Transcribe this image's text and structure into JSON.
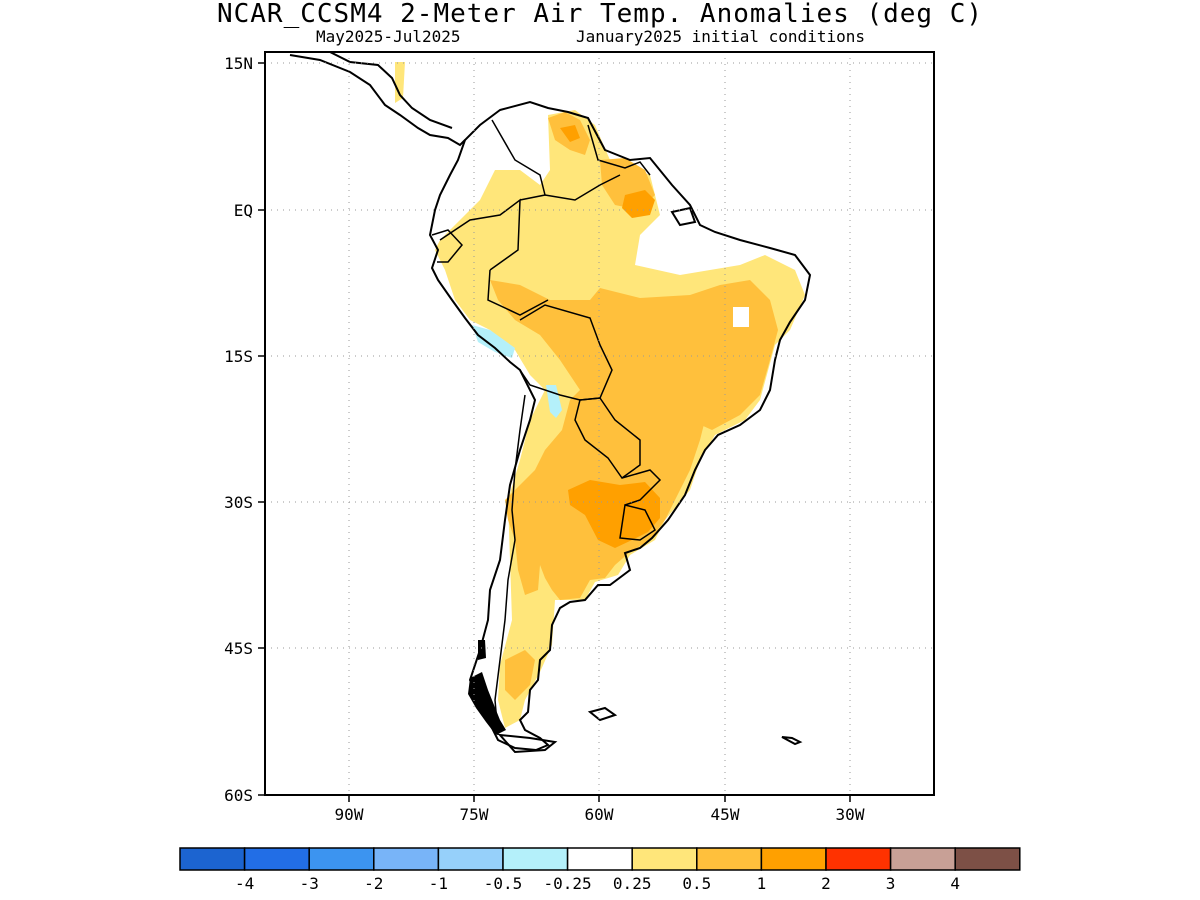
{
  "title": "NCAR_CCSM4 2-Meter Air Temp. Anomalies (deg C)",
  "subtitle_left": "May2025-Jul2025",
  "subtitle_right": "January2025 initial conditions",
  "map": {
    "lat_labels": [
      "15N",
      "EQ",
      "15S",
      "30S",
      "45S",
      "60S"
    ],
    "lon_labels": [
      "90W",
      "75W",
      "60W",
      "45W",
      "30W"
    ],
    "lat_values": [
      15,
      0,
      -15,
      -30,
      -45,
      -60
    ],
    "lon_values": [
      -90,
      -75,
      -60,
      -45,
      -30
    ],
    "lon_range": [
      -100,
      -20
    ],
    "lat_range": [
      -60,
      16
    ],
    "grid": "dotted",
    "anomaly_regions": [
      {
        "region": "central-brazil",
        "category": "0.5-1"
      },
      {
        "region": "amazon-north",
        "category": "0.25-0.5"
      },
      {
        "region": "uruguay-southern-brazil",
        "category": "1-2"
      },
      {
        "region": "guianas",
        "category": "1-2"
      },
      {
        "region": "argentina-central",
        "category": "0.5-1"
      },
      {
        "region": "patagonia",
        "category": "0.25-0.5"
      },
      {
        "region": "altiplano",
        "category": "-0.5--0.25"
      }
    ]
  },
  "colorbar": {
    "colors": [
      "#1c64d0",
      "#226ee6",
      "#3c94f0",
      "#78b4f8",
      "#96d0fa",
      "#b4f0fa",
      "#ffffff",
      "#ffe67a",
      "#ffc03c",
      "#ffa000",
      "#ff3200",
      "#c8a096",
      "#7d5046"
    ],
    "labels": [
      "-4",
      "-3",
      "-2",
      "-1",
      "-0.5",
      "-0.25",
      "0.25",
      "0.5",
      "1",
      "2",
      "3",
      "4"
    ]
  }
}
